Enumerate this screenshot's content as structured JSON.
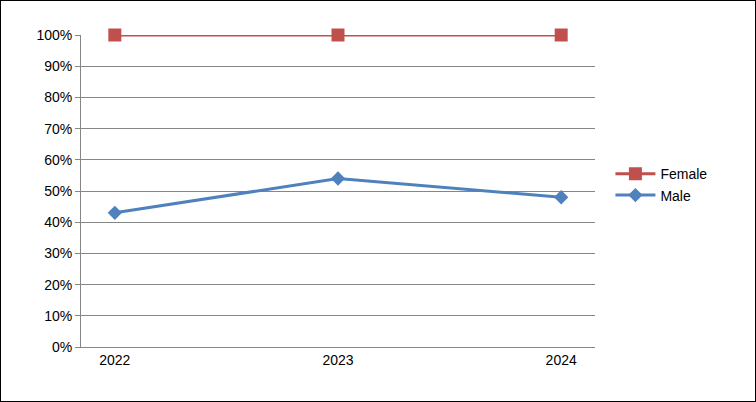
{
  "chart_data": {
    "type": "line",
    "categories": [
      "2022",
      "2023",
      "2024"
    ],
    "series": [
      {
        "name": "Female",
        "color": "#c0504d",
        "marker": "square",
        "line_style": "solid",
        "values": [
          100,
          100,
          100
        ]
      },
      {
        "name": "Male",
        "color": "#4f81bd",
        "marker": "diamond",
        "line_style": "solid",
        "values": [
          43,
          54,
          48
        ]
      }
    ],
    "ylim": [
      0,
      100
    ],
    "yticks": [
      {
        "value": 0,
        "label": "0%"
      },
      {
        "value": 10,
        "label": "10%"
      },
      {
        "value": 20,
        "label": "20%"
      },
      {
        "value": 30,
        "label": "30%"
      },
      {
        "value": 40,
        "label": "40%"
      },
      {
        "value": 50,
        "label": "50%"
      },
      {
        "value": 60,
        "label": "60%"
      },
      {
        "value": 70,
        "label": "70%"
      },
      {
        "value": 80,
        "label": "80%"
      },
      {
        "value": 90,
        "label": "90%"
      },
      {
        "value": 100,
        "label": "100%"
      }
    ],
    "grid": true,
    "legend": "right"
  }
}
